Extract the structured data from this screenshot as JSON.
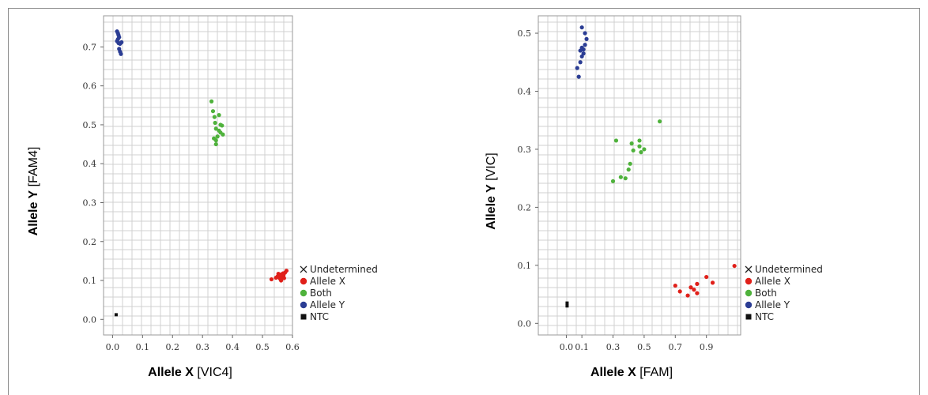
{
  "chart_data": [
    {
      "type": "scatter",
      "xlabel": {
        "bold": "Allele X",
        "rest": " [VIC4]"
      },
      "ylabel": {
        "bold": "Allele Y",
        "rest": " [FAM4]"
      },
      "xlim": [
        -0.03,
        0.6
      ],
      "ylim": [
        -0.04,
        0.78
      ],
      "xticks": [
        0.0,
        0.1,
        0.2,
        0.3,
        0.4,
        0.5,
        0.6
      ],
      "xtick_labels": [
        "0.0",
        "0.1",
        "0.2",
        "0.3",
        "0.4",
        "0.5",
        "0.6"
      ],
      "yticks": [
        0.0,
        0.1,
        0.2,
        0.3,
        0.4,
        0.5,
        0.6,
        0.7
      ],
      "ytick_labels": [
        "0.0",
        "0.1",
        "0.2",
        "0.3",
        "0.4",
        "0.5",
        "0.6",
        "0.7"
      ],
      "grid": true,
      "legend_placement": "right",
      "series": [
        {
          "name": "Undetermined",
          "color": "#222222",
          "marker": "x",
          "points": []
        },
        {
          "name": "Allele X",
          "color": "#e0201a",
          "marker": "circle",
          "points": [
            [
              0.53,
              0.103
            ],
            [
              0.545,
              0.107
            ],
            [
              0.55,
              0.11
            ],
            [
              0.555,
              0.112
            ],
            [
              0.558,
              0.105
            ],
            [
              0.56,
              0.115
            ],
            [
              0.562,
              0.1
            ],
            [
              0.565,
              0.109
            ],
            [
              0.568,
              0.118
            ],
            [
              0.57,
              0.113
            ],
            [
              0.572,
              0.106
            ],
            [
              0.575,
              0.12
            ],
            [
              0.58,
              0.125
            ],
            [
              0.56,
              0.108
            ],
            [
              0.553,
              0.117
            ]
          ]
        },
        {
          "name": "Both",
          "color": "#4fb23c",
          "marker": "circle",
          "points": [
            [
              0.33,
              0.56
            ],
            [
              0.335,
              0.535
            ],
            [
              0.34,
              0.52
            ],
            [
              0.342,
              0.505
            ],
            [
              0.345,
              0.49
            ],
            [
              0.338,
              0.465
            ],
            [
              0.345,
              0.46
            ],
            [
              0.35,
              0.47
            ],
            [
              0.355,
              0.525
            ],
            [
              0.355,
              0.485
            ],
            [
              0.36,
              0.5
            ],
            [
              0.36,
              0.48
            ],
            [
              0.365,
              0.498
            ],
            [
              0.368,
              0.475
            ],
            [
              0.345,
              0.45
            ]
          ]
        },
        {
          "name": "Allele Y",
          "color": "#2b3d94",
          "marker": "circle",
          "points": [
            [
              0.015,
              0.74
            ],
            [
              0.018,
              0.735
            ],
            [
              0.02,
              0.73
            ],
            [
              0.022,
              0.725
            ],
            [
              0.015,
              0.715
            ],
            [
              0.02,
              0.71
            ],
            [
              0.025,
              0.708
            ],
            [
              0.03,
              0.712
            ],
            [
              0.022,
              0.695
            ],
            [
              0.025,
              0.688
            ],
            [
              0.028,
              0.682
            ],
            [
              0.018,
              0.72
            ]
          ]
        },
        {
          "name": "NTC",
          "color": "#111111",
          "marker": "square",
          "points": [
            [
              0.012,
              0.012
            ]
          ]
        }
      ]
    },
    {
      "type": "scatter",
      "xlabel": {
        "bold": "Allele X",
        "rest": " [FAM]"
      },
      "ylabel": {
        "bold": "Allele Y",
        "rest": " [VIC]"
      },
      "xlim": [
        -0.18,
        1.12
      ],
      "ylim": [
        -0.02,
        0.53
      ],
      "xticks": [
        0.0,
        0.1,
        0.3,
        0.5,
        0.7,
        0.9
      ],
      "xtick_labels": [
        "0.0",
        "0.1",
        "0.3",
        "0.5",
        "0.7",
        "0.9"
      ],
      "yticks": [
        0.0,
        0.1,
        0.2,
        0.3,
        0.4,
        0.5
      ],
      "ytick_labels": [
        "0.0",
        "0.1",
        "0.2",
        "0.3",
        "0.4",
        "0.5"
      ],
      "grid": true,
      "legend_placement": "right",
      "series": [
        {
          "name": "Undetermined",
          "color": "#222222",
          "marker": "x",
          "points": []
        },
        {
          "name": "Allele X",
          "color": "#e0201a",
          "marker": "circle",
          "points": [
            [
              0.7,
              0.065
            ],
            [
              0.73,
              0.055
            ],
            [
              0.78,
              0.048
            ],
            [
              0.8,
              0.062
            ],
            [
              0.82,
              0.058
            ],
            [
              0.84,
              0.052
            ],
            [
              0.84,
              0.068
            ],
            [
              0.9,
              0.08
            ],
            [
              0.94,
              0.07
            ],
            [
              1.08,
              0.099
            ]
          ]
        },
        {
          "name": "Both",
          "color": "#4fb23c",
          "marker": "circle",
          "points": [
            [
              0.3,
              0.245
            ],
            [
              0.32,
              0.315
            ],
            [
              0.35,
              0.252
            ],
            [
              0.38,
              0.25
            ],
            [
              0.4,
              0.265
            ],
            [
              0.41,
              0.275
            ],
            [
              0.42,
              0.31
            ],
            [
              0.43,
              0.298
            ],
            [
              0.47,
              0.315
            ],
            [
              0.47,
              0.305
            ],
            [
              0.48,
              0.295
            ],
            [
              0.5,
              0.3
            ],
            [
              0.6,
              0.348
            ]
          ]
        },
        {
          "name": "Allele Y",
          "color": "#2b3d94",
          "marker": "circle",
          "points": [
            [
              0.08,
              0.425
            ],
            [
              0.07,
              0.44
            ],
            [
              0.09,
              0.45
            ],
            [
              0.1,
              0.46
            ],
            [
              0.09,
              0.47
            ],
            [
              0.11,
              0.465
            ],
            [
              0.12,
              0.48
            ],
            [
              0.1,
              0.475
            ],
            [
              0.13,
              0.49
            ],
            [
              0.12,
              0.5
            ],
            [
              0.1,
              0.51
            ],
            [
              0.11,
              0.472
            ]
          ]
        },
        {
          "name": "NTC",
          "color": "#111111",
          "marker": "square",
          "points": [
            [
              0.005,
              0.03
            ],
            [
              0.005,
              0.035
            ]
          ]
        }
      ]
    }
  ]
}
